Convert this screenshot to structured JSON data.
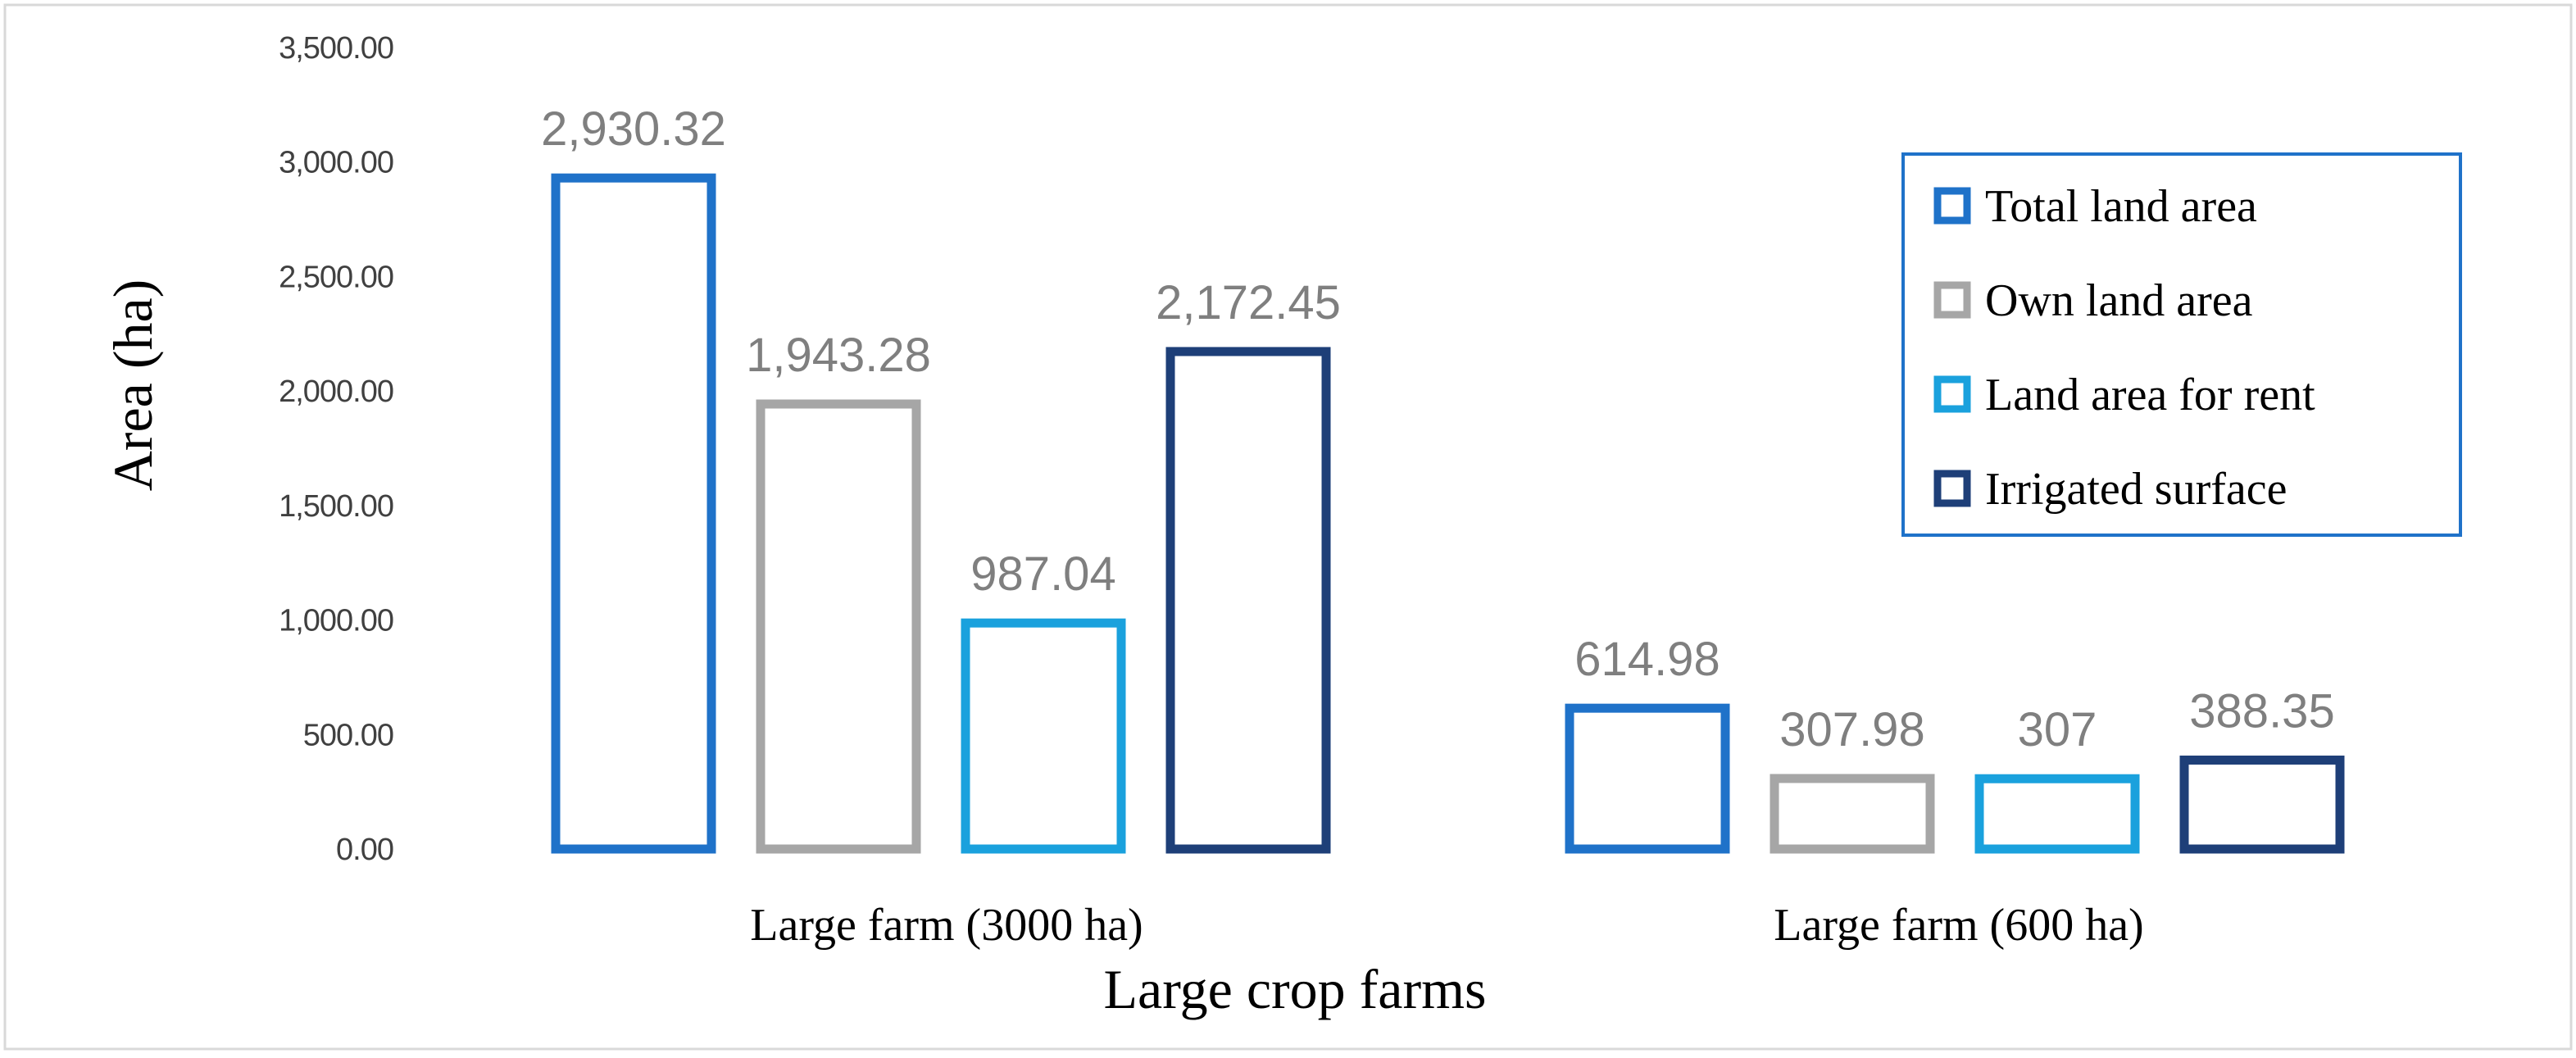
{
  "chart_data": {
    "type": "bar",
    "title": "",
    "xlabel": "Large crop farms",
    "ylabel": "Area (ha)",
    "categories": [
      "Large farm (3000 ha)",
      "Large farm (600 ha)"
    ],
    "series": [
      {
        "name": "Total land area",
        "values": [
          2930.32,
          614.98
        ],
        "labels": [
          "2,930.32",
          "614.98"
        ],
        "color": "#1f72c9"
      },
      {
        "name": "Own land area",
        "values": [
          1943.28,
          307.98
        ],
        "labels": [
          "1,943.28",
          "307.98"
        ],
        "color": "#a6a6a6"
      },
      {
        "name": "Land area for rent",
        "values": [
          987.04,
          307
        ],
        "labels": [
          "987.04",
          "307"
        ],
        "color": "#1aa1dd"
      },
      {
        "name": "Irrigated surface",
        "values": [
          2172.45,
          388.35
        ],
        "labels": [
          "2,172.45",
          "388.35"
        ],
        "color": "#1e3f78"
      }
    ],
    "ylim": [
      0,
      3500
    ],
    "yticks": [
      0,
      500,
      1000,
      1500,
      2000,
      2500,
      3000,
      3500
    ],
    "ytick_labels": [
      "0.00",
      "500.00",
      "1,000.00",
      "1,500.00",
      "2,000.00",
      "2,500.00",
      "3,000.00",
      "3,500.00"
    ],
    "grid": false,
    "legend_position": "top-right",
    "bar_style": "outline"
  },
  "colors": {
    "frame": "#d9d9d9",
    "legend_border": "#1f72c9"
  }
}
